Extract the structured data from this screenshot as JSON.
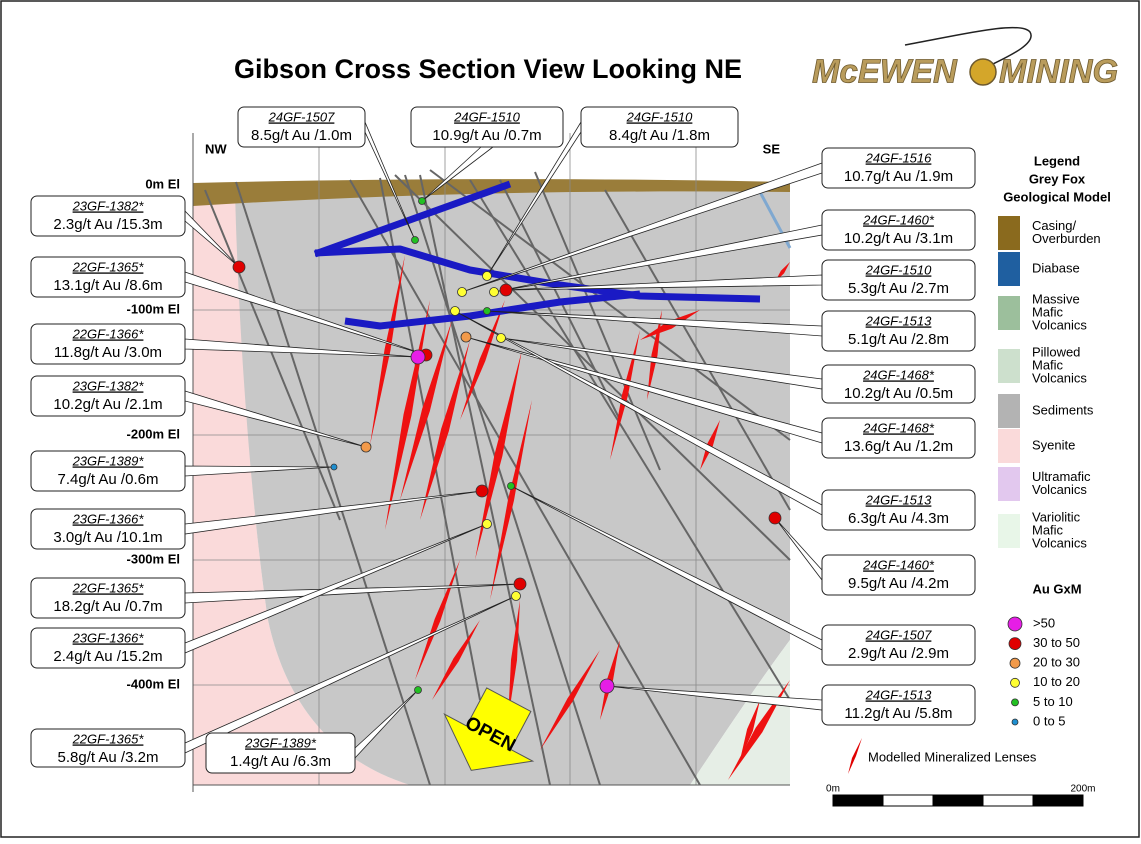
{
  "title": "Gibson Cross Section View Looking NE",
  "logo": {
    "left": "McEWEN",
    "right": "MINING"
  },
  "orientation": {
    "left": "NW",
    "right": "SE"
  },
  "elevations": [
    "0m El",
    "-100m El",
    "-200m El",
    "-300m El",
    "-400m El"
  ],
  "callouts": [
    {
      "hole": "24GF-1507",
      "grade": "8.5g/t Au /1.0m"
    },
    {
      "hole": "24GF-1510",
      "grade": "10.9g/t Au /0.7m"
    },
    {
      "hole": "24GF-1510",
      "grade": "8.4g/t Au /1.8m"
    },
    {
      "hole": "24GF-1516",
      "grade": "10.7g/t Au /1.9m"
    },
    {
      "hole": "24GF-1460*",
      "grade": "10.2g/t Au /3.1m"
    },
    {
      "hole": "24GF-1510",
      "grade": "5.3g/t Au /2.7m"
    },
    {
      "hole": "24GF-1513",
      "grade": "5.1g/t Au /2.8m"
    },
    {
      "hole": "24GF-1468*",
      "grade": "10.2g/t Au /0.5m"
    },
    {
      "hole": "24GF-1468*",
      "grade": "13.6g/t Au /1.2m"
    },
    {
      "hole": "24GF-1513",
      "grade": "6.3g/t Au /4.3m"
    },
    {
      "hole": "24GF-1460*",
      "grade": "9.5g/t Au /4.2m"
    },
    {
      "hole": "24GF-1507",
      "grade": "2.9g/t Au /2.9m"
    },
    {
      "hole": "24GF-1513",
      "grade": "11.2g/t Au /5.8m"
    },
    {
      "hole": "23GF-1382*",
      "grade": "2.3g/t Au /15.3m"
    },
    {
      "hole": "22GF-1365*",
      "grade": "13.1g/t Au /8.6m"
    },
    {
      "hole": "22GF-1366*",
      "grade": "11.8g/t Au /3.0m"
    },
    {
      "hole": "23GF-1382*",
      "grade": "10.2g/t Au /2.1m"
    },
    {
      "hole": "23GF-1389*",
      "grade": "7.4g/t Au /0.6m"
    },
    {
      "hole": "23GF-1366*",
      "grade": "3.0g/t Au /10.1m"
    },
    {
      "hole": "22GF-1365*",
      "grade": "18.2g/t Au /0.7m"
    },
    {
      "hole": "23GF-1366*",
      "grade": "2.4g/t Au /15.2m"
    },
    {
      "hole": "22GF-1365*",
      "grade": "5.8g/t Au /3.2m"
    },
    {
      "hole": "23GF-1389*",
      "grade": "1.4g/t Au /6.3m"
    }
  ],
  "legend": {
    "title": [
      "Legend",
      "Grey Fox",
      "Geological Model"
    ],
    "items": [
      {
        "label": [
          "Casing/",
          "Overburden"
        ],
        "color": "#8a6a1e"
      },
      {
        "label": [
          "Diabase"
        ],
        "color": "#1f5fa0"
      },
      {
        "label": [
          "Massive",
          "Mafic",
          "Volcanics"
        ],
        "color": "#9cbf9c"
      },
      {
        "label": [
          "Pillowed",
          "Mafic",
          "Volcanics"
        ],
        "color": "#cde0cd"
      },
      {
        "label": [
          "Sediments"
        ],
        "color": "#b3b3b3"
      },
      {
        "label": [
          "Syenite"
        ],
        "color": "#fadada"
      },
      {
        "label": [
          "Ultramafic",
          "Volcanics"
        ],
        "color": "#e2c8ee"
      },
      {
        "label": [
          "Variolitic",
          "Mafic",
          "Volcanics"
        ],
        "color": "#e8f6e8"
      }
    ]
  },
  "au_legend": {
    "title": "Au GxM",
    "items": [
      {
        "label": ">50",
        "color": "#e61ee6"
      },
      {
        "label": "30 to 50",
        "color": "#e00000"
      },
      {
        "label": "20 to 30",
        "color": "#f29a4a"
      },
      {
        "label": "10 to 20",
        "color": "#ffff33"
      },
      {
        "label": "5 to 10",
        "color": "#22c022"
      },
      {
        "label": "0 to 5",
        "color": "#1f8fd0"
      }
    ]
  },
  "lenses_label": "Modelled Mineralized Lenses",
  "open_label": "OPEN",
  "scale": {
    "start": "0m",
    "end": "200m"
  }
}
